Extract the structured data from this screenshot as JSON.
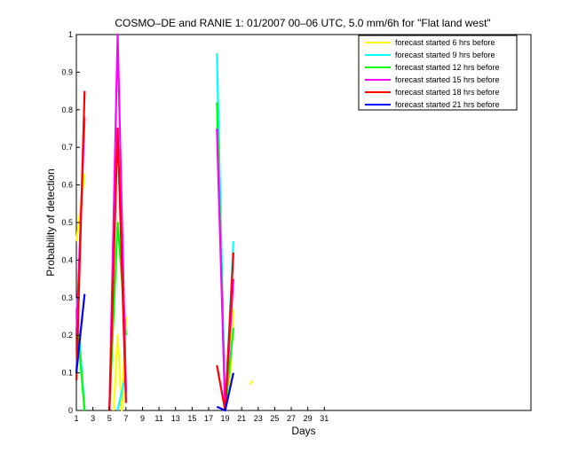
{
  "chart_data": {
    "type": "line",
    "title": "COSMO–DE and RANIE 1: 01/2007 00–06 UTC, 5.0 mm/6h for \"Flat land west\"",
    "xlabel": "Days",
    "ylabel": "Probability of detection",
    "xlim": [
      1,
      56
    ],
    "ylim": [
      0,
      1
    ],
    "x_ticks": [
      1,
      3,
      5,
      7,
      9,
      11,
      13,
      15,
      17,
      19,
      21,
      23,
      25,
      27,
      29,
      31
    ],
    "y_ticks": [
      0,
      0.1,
      0.2,
      0.3,
      0.4,
      0.5,
      0.6,
      0.7,
      0.8,
      0.9,
      1
    ],
    "y_tick_labels": [
      "0",
      "0.1",
      "0.2",
      "0.3",
      "0.4",
      "0.5",
      "0.6",
      "0.7",
      "0.8",
      "0.9",
      "1"
    ],
    "grid": false,
    "legend_position": "top-right",
    "series": [
      {
        "name": "forecast started 6 hrs before",
        "color": "#ffff00",
        "segments": [
          [
            [
              1,
              0.45
            ],
            [
              2,
              0.63
            ]
          ],
          [
            [
              5.5,
              0.0
            ],
            [
              6,
              0.2
            ],
            [
              6.5,
              0.0
            ],
            [
              7,
              0.25
            ]
          ],
          [
            [
              19.5,
              0.05
            ],
            [
              20,
              0.27
            ]
          ],
          [
            [
              22,
              0.07
            ],
            [
              22.3,
              0.08
            ]
          ]
        ]
      },
      {
        "name": "forecast started 9 hrs before",
        "color": "#00ffff",
        "segments": [
          [
            [
              1,
              0.3
            ],
            [
              2,
              0.0
            ]
          ],
          [
            [
              6,
              0.0
            ],
            [
              7,
              0.1
            ]
          ],
          [
            [
              18,
              0.95
            ],
            [
              19,
              0.0
            ],
            [
              20,
              0.45
            ]
          ]
        ]
      },
      {
        "name": "forecast started 12 hrs before",
        "color": "#00ff00",
        "segments": [
          [
            [
              1,
              0.25
            ],
            [
              2,
              0.0
            ]
          ],
          [
            [
              5,
              0.0
            ],
            [
              6,
              0.5
            ],
            [
              7,
              0.2
            ]
          ],
          [
            [
              18,
              0.82
            ],
            [
              19,
              0.0
            ],
            [
              20,
              0.22
            ]
          ]
        ]
      },
      {
        "name": "forecast started 15 hrs before",
        "color": "#ff00ff",
        "segments": [
          [
            [
              1,
              0.2
            ],
            [
              2,
              0.78
            ]
          ],
          [
            [
              5,
              0.0
            ],
            [
              6,
              1.0
            ],
            [
              7,
              0.05
            ]
          ],
          [
            [
              18,
              0.75
            ],
            [
              19,
              0.0
            ],
            [
              20,
              0.35
            ]
          ]
        ]
      },
      {
        "name": "forecast started 18 hrs before",
        "color": "#ff0000",
        "segments": [
          [
            [
              1,
              0.08
            ],
            [
              2,
              0.85
            ]
          ],
          [
            [
              5,
              0.0
            ],
            [
              6,
              0.75
            ],
            [
              7,
              0.02
            ]
          ],
          [
            [
              18,
              0.12
            ],
            [
              19,
              0.0
            ],
            [
              20,
              0.42
            ]
          ]
        ]
      },
      {
        "name": "forecast started 21 hrs before",
        "color": "#0000ff",
        "segments": [
          [
            [
              1,
              0.1
            ],
            [
              2,
              0.31
            ]
          ],
          [
            [
              18,
              0.01
            ],
            [
              19,
              0.0
            ],
            [
              20,
              0.1
            ]
          ]
        ]
      }
    ]
  }
}
